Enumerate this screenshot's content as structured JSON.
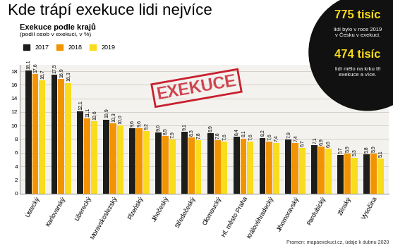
{
  "chart_data": {
    "type": "bar",
    "title": "Kde trápí exekuce lidi nejvíce",
    "subtitle": "Exekuce podle krajů",
    "y_label": "(podíl osob v exekuci, v %)",
    "categories": [
      "Ústecký",
      "Karlovarský",
      "Liberecký",
      "Moravskoslezský",
      "Plzeňský",
      "Jihočeský",
      "Středočeský",
      "Olomoucký",
      "Hl. město Praha",
      "Královéhradecký",
      "Jihomoravský",
      "Pardubický",
      "Zlínský",
      "Vysočina"
    ],
    "series": [
      {
        "name": "2017",
        "color": "#1d1d1b",
        "values": [
          18.1,
          17.5,
          12.1,
          10.9,
          9.6,
          9.0,
          9.1,
          8.9,
          8.4,
          8.2,
          7.9,
          7.1,
          5.7,
          5.8
        ],
        "value_labels": [
          "18,1",
          "17,5",
          "12,1",
          "10,9",
          "9,6",
          "9,0",
          "9,1",
          "8,9",
          "8,4",
          "8,2",
          "7,9",
          "7,1",
          "5,7",
          "5,8"
        ]
      },
      {
        "name": "2018",
        "color": "#f29400",
        "values": [
          17.6,
          16.9,
          11.1,
          10.3,
          9.6,
          8.5,
          8.3,
          7.8,
          8.1,
          7.6,
          7.4,
          6.9,
          5.9,
          5.9
        ],
        "value_labels": [
          "17,6",
          "16,9",
          "11,1",
          "10,3",
          "9,6",
          "8,5",
          "8,3",
          "7,8",
          "8,1",
          "7,6",
          "7,4",
          "6,9",
          "5,9",
          "5,9"
        ]
      },
      {
        "name": "2019",
        "color": "#f9dc1c",
        "values": [
          16.7,
          16.3,
          10.6,
          10.0,
          9.2,
          7.9,
          7.8,
          7.6,
          7.6,
          7.4,
          6.7,
          6.6,
          5.3,
          5.1
        ],
        "value_labels": [
          "16,7",
          "16,3",
          "10,6",
          "10,0",
          "9,2",
          "7,9",
          "7,8",
          "7,6",
          "7,6",
          "7,4",
          "6,7",
          "6,6",
          "5,3",
          "5,1"
        ]
      }
    ],
    "ylim": [
      0,
      19
    ],
    "yticks": [
      0,
      2,
      4,
      6,
      8,
      10,
      12,
      14,
      16,
      18
    ],
    "grid": true,
    "legend": "upper left",
    "data_labels": true,
    "annotations": [
      {
        "headline": "775 tisíc",
        "text": "lidí bylo v roce 2019 v Česku v exekuci."
      },
      {
        "headline": "474 tisíc",
        "text": "lidí mělo na krku tři exekuce a více."
      }
    ],
    "stamp": "EXEKUCE",
    "source": "Pramen: mapaexekuci.cz, údaje k dubnu 2020"
  }
}
